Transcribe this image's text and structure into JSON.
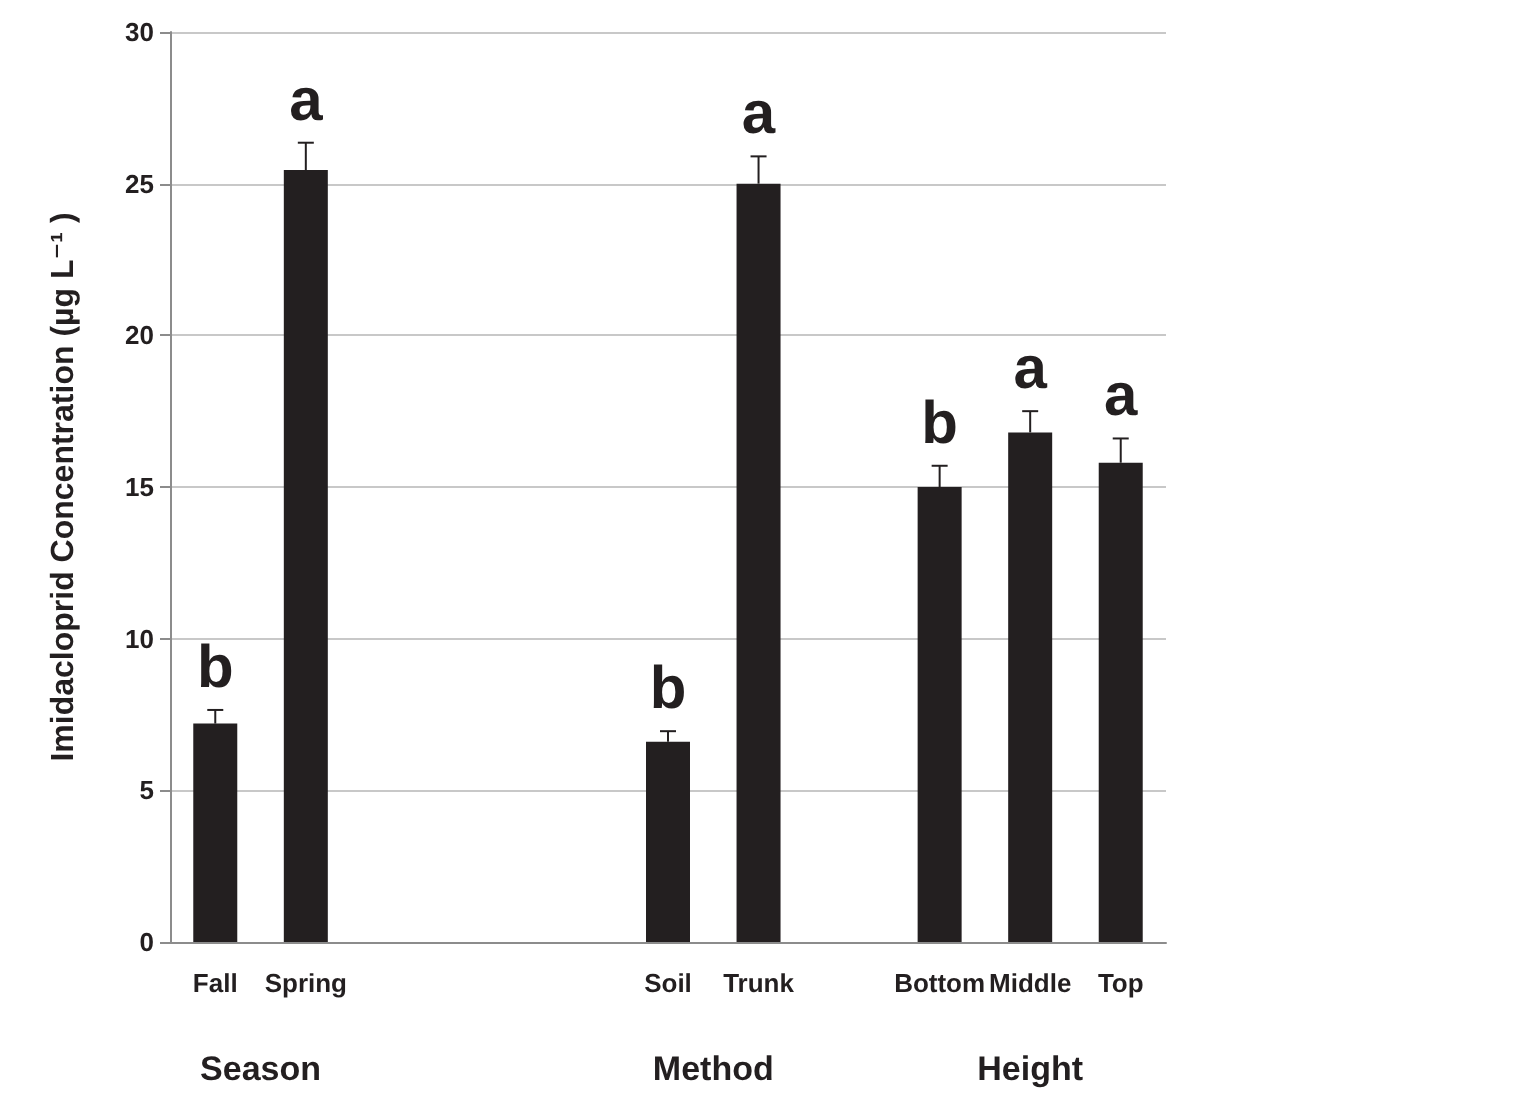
{
  "chart_data": {
    "type": "bar",
    "ylabel": "Imidacloprid Concentration (µg L⁻¹ )",
    "categories": [
      "Fall",
      "Spring",
      null,
      null,
      null,
      "Soil",
      "Trunk",
      null,
      "Bottom",
      "Middle",
      "Top"
    ],
    "values": [
      7.2,
      25.45,
      null,
      null,
      null,
      6.6,
      25.0,
      null,
      15.0,
      16.8,
      15.8
    ],
    "errors": [
      [
        7.2,
        7.65
      ],
      [
        25.45,
        26.35
      ],
      null,
      null,
      null,
      [
        6.6,
        6.95
      ],
      [
        25.0,
        25.9
      ],
      null,
      [
        15.0,
        15.7
      ],
      [
        16.8,
        17.5
      ],
      [
        15.8,
        16.6
      ]
    ],
    "color": "#231f20",
    "ylim": [
      0,
      30
    ],
    "yticks": [
      0,
      5,
      10,
      15,
      20,
      25,
      30
    ],
    "grid": "y",
    "annotations": [
      "Season",
      "Method",
      "Height",
      {
        "text": "b",
        "x": "Fall",
        "y": 7.65
      },
      {
        "text": "a",
        "x": "Spring",
        "y": 26.35
      },
      {
        "text": "b",
        "x": "Soil",
        "y": 6.95
      },
      {
        "text": "a",
        "x": "Trunk",
        "y": 25.9
      },
      {
        "text": "b",
        "x": "Bottom",
        "y": 15.7
      },
      {
        "text": "a",
        "x": "Middle",
        "y": 17.5
      },
      {
        "text": "a",
        "x": "Top",
        "y": 16.6
      }
    ]
  }
}
